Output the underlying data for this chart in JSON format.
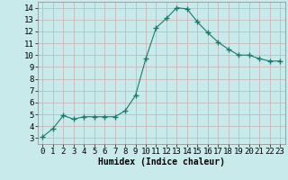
{
  "x": [
    0,
    1,
    2,
    3,
    4,
    5,
    6,
    7,
    8,
    9,
    10,
    11,
    12,
    13,
    14,
    15,
    16,
    17,
    18,
    19,
    20,
    21,
    22,
    23
  ],
  "y": [
    3.1,
    3.8,
    4.9,
    4.6,
    4.8,
    4.8,
    4.8,
    4.8,
    5.3,
    6.6,
    9.7,
    12.3,
    13.1,
    14.0,
    13.9,
    12.8,
    11.9,
    11.1,
    10.5,
    10.0,
    10.0,
    9.7,
    9.5,
    9.5
  ],
  "line_color": "#1a7a6e",
  "marker": "+",
  "marker_size": 4,
  "bg_color": "#c8eaea",
  "grid_color": "#b8d8d8",
  "xlabel": "Humidex (Indice chaleur)",
  "xlim": [
    -0.5,
    23.5
  ],
  "ylim": [
    2.5,
    14.5
  ],
  "yticks": [
    3,
    4,
    5,
    6,
    7,
    8,
    9,
    10,
    11,
    12,
    13,
    14
  ],
  "xticks": [
    0,
    1,
    2,
    3,
    4,
    5,
    6,
    7,
    8,
    9,
    10,
    11,
    12,
    13,
    14,
    15,
    16,
    17,
    18,
    19,
    20,
    21,
    22,
    23
  ],
  "xlabel_fontsize": 7,
  "tick_fontsize": 6.5
}
